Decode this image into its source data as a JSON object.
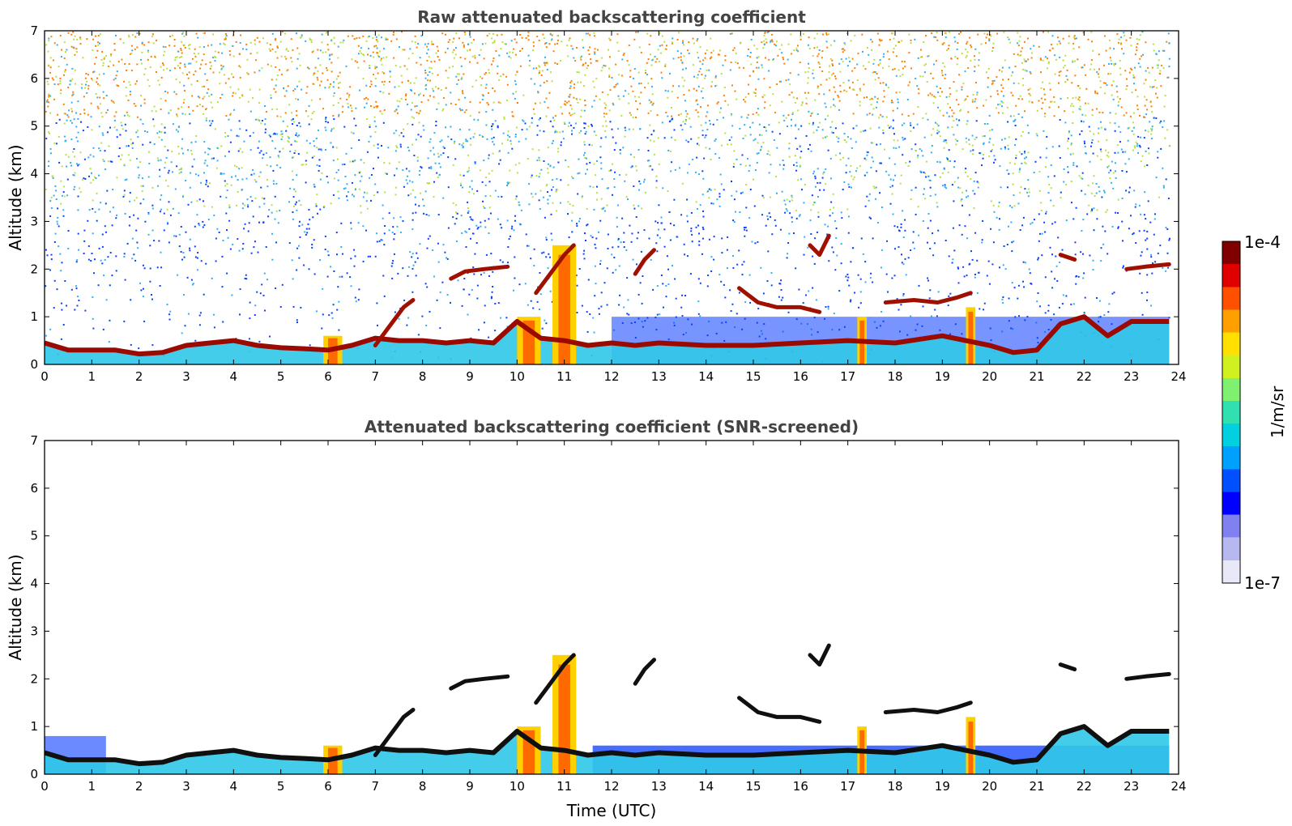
{
  "chart_data": [
    {
      "type": "heatmap",
      "title": "Raw attenuated backscattering coefficient",
      "xlabel": "",
      "ylabel": "Altitude (km)",
      "xlim": [
        0,
        24
      ],
      "ylim": [
        0,
        7
      ],
      "x_ticks": [
        "0",
        "1",
        "2",
        "3",
        "4",
        "5",
        "6",
        "7",
        "8",
        "9",
        "10",
        "11",
        "12",
        "13",
        "14",
        "15",
        "16",
        "17",
        "18",
        "19",
        "20",
        "21",
        "22",
        "23",
        "24"
      ],
      "y_ticks": [
        "0",
        "1",
        "2",
        "3",
        "4",
        "5",
        "6",
        "7"
      ],
      "boundary_layer": [
        [
          0,
          0.45
        ],
        [
          0.5,
          0.3
        ],
        [
          1,
          0.3
        ],
        [
          1.5,
          0.3
        ],
        [
          2,
          0.22
        ],
        [
          2.5,
          0.25
        ],
        [
          3,
          0.4
        ],
        [
          3.5,
          0.45
        ],
        [
          4,
          0.5
        ],
        [
          4.5,
          0.4
        ],
        [
          5,
          0.35
        ],
        [
          5.5,
          0.33
        ],
        [
          6,
          0.3
        ],
        [
          6.5,
          0.4
        ],
        [
          7,
          0.55
        ],
        [
          7.5,
          0.5
        ],
        [
          8,
          0.5
        ],
        [
          8.5,
          0.45
        ],
        [
          9,
          0.5
        ],
        [
          9.5,
          0.45
        ],
        [
          10,
          0.9
        ],
        [
          10.5,
          0.55
        ],
        [
          11,
          0.5
        ],
        [
          11.5,
          0.4
        ],
        [
          12,
          0.45
        ],
        [
          12.5,
          0.4
        ],
        [
          13,
          0.45
        ],
        [
          14,
          0.4
        ],
        [
          15,
          0.4
        ],
        [
          16,
          0.45
        ],
        [
          17,
          0.5
        ],
        [
          18,
          0.45
        ],
        [
          19,
          0.6
        ],
        [
          20,
          0.4
        ],
        [
          20.5,
          0.25
        ],
        [
          21,
          0.3
        ],
        [
          21.5,
          0.85
        ],
        [
          22,
          1.0
        ],
        [
          22.5,
          0.6
        ],
        [
          23,
          0.9
        ],
        [
          23.8,
          0.9
        ]
      ],
      "cloud_layers": [
        {
          "name": "cloud-layer-7-8",
          "points": [
            [
              7.0,
              0.4
            ],
            [
              7.3,
              0.8
            ],
            [
              7.6,
              1.2
            ],
            [
              7.8,
              1.35
            ]
          ]
        },
        {
          "name": "cloud-layer-8-9",
          "points": [
            [
              8.6,
              1.8
            ],
            [
              8.9,
              1.95
            ],
            [
              9.3,
              2.0
            ],
            [
              9.8,
              2.05
            ]
          ]
        },
        {
          "name": "cloud-layer-11",
          "points": [
            [
              10.4,
              1.5
            ],
            [
              10.7,
              1.9
            ],
            [
              11.0,
              2.3
            ],
            [
              11.2,
              2.5
            ]
          ]
        },
        {
          "name": "cloud-layer-12-13",
          "points": [
            [
              12.5,
              1.9
            ],
            [
              12.7,
              2.2
            ],
            [
              12.9,
              2.4
            ]
          ]
        },
        {
          "name": "cloud-layer-15-16",
          "points": [
            [
              14.7,
              1.6
            ],
            [
              15.1,
              1.3
            ],
            [
              15.5,
              1.2
            ],
            [
              16.0,
              1.2
            ],
            [
              16.4,
              1.1
            ]
          ]
        },
        {
          "name": "cloud-layer-16-17",
          "points": [
            [
              16.2,
              2.5
            ],
            [
              16.4,
              2.3
            ],
            [
              16.6,
              2.7
            ]
          ]
        },
        {
          "name": "cloud-layer-18-19",
          "points": [
            [
              17.8,
              1.3
            ],
            [
              18.4,
              1.35
            ],
            [
              18.9,
              1.3
            ],
            [
              19.3,
              1.4
            ],
            [
              19.6,
              1.5
            ]
          ]
        },
        {
          "name": "cloud-layer-21-22",
          "points": [
            [
              21.5,
              2.3
            ],
            [
              21.8,
              2.2
            ]
          ]
        },
        {
          "name": "cloud-layer-23-24",
          "points": [
            [
              22.9,
              2.0
            ],
            [
              23.3,
              2.05
            ],
            [
              23.8,
              2.1
            ]
          ]
        }
      ],
      "precip_columns": [
        {
          "name": "rain-column-6",
          "x_start": 5.9,
          "x_end": 6.3,
          "top": 0.6
        },
        {
          "name": "rain-column-10-11",
          "x_start": 10.0,
          "x_end": 10.5,
          "top": 1.0
        },
        {
          "name": "rain-column-11",
          "x_start": 10.75,
          "x_end": 11.25,
          "top": 2.5
        },
        {
          "name": "rain-column-17",
          "x_start": 17.2,
          "x_end": 17.4,
          "top": 1.0
        },
        {
          "name": "rain-column-19-20",
          "x_start": 19.5,
          "x_end": 19.7,
          "top": 1.2
        }
      ]
    },
    {
      "type": "heatmap",
      "title": "Attenuated backscattering coefficient (SNR-screened)",
      "xlabel": "Time (UTC)",
      "ylabel": "Altitude (km)",
      "xlim": [
        0,
        24
      ],
      "ylim": [
        0,
        7
      ],
      "x_ticks": [
        "0",
        "1",
        "2",
        "3",
        "4",
        "5",
        "6",
        "7",
        "8",
        "9",
        "10",
        "11",
        "12",
        "13",
        "14",
        "15",
        "16",
        "17",
        "18",
        "19",
        "20",
        "21",
        "22",
        "23",
        "24"
      ],
      "y_ticks": [
        "0",
        "1",
        "2",
        "3",
        "4",
        "5",
        "6",
        "7"
      ],
      "boundary_layer": [
        [
          0,
          0.45
        ],
        [
          0.5,
          0.3
        ],
        [
          1,
          0.3
        ],
        [
          1.5,
          0.3
        ],
        [
          2,
          0.22
        ],
        [
          2.5,
          0.25
        ],
        [
          3,
          0.4
        ],
        [
          3.5,
          0.45
        ],
        [
          4,
          0.5
        ],
        [
          4.5,
          0.4
        ],
        [
          5,
          0.35
        ],
        [
          5.5,
          0.33
        ],
        [
          6,
          0.3
        ],
        [
          6.5,
          0.4
        ],
        [
          7,
          0.55
        ],
        [
          7.5,
          0.5
        ],
        [
          8,
          0.5
        ],
        [
          8.5,
          0.45
        ],
        [
          9,
          0.5
        ],
        [
          9.5,
          0.45
        ],
        [
          10,
          0.9
        ],
        [
          10.5,
          0.55
        ],
        [
          11,
          0.5
        ],
        [
          11.5,
          0.4
        ],
        [
          12,
          0.45
        ],
        [
          12.5,
          0.4
        ],
        [
          13,
          0.45
        ],
        [
          14,
          0.4
        ],
        [
          15,
          0.4
        ],
        [
          16,
          0.45
        ],
        [
          17,
          0.5
        ],
        [
          18,
          0.45
        ],
        [
          19,
          0.6
        ],
        [
          20,
          0.4
        ],
        [
          20.5,
          0.25
        ],
        [
          21,
          0.3
        ],
        [
          21.5,
          0.85
        ],
        [
          22,
          1.0
        ],
        [
          22.5,
          0.6
        ],
        [
          23,
          0.9
        ],
        [
          23.8,
          0.9
        ]
      ],
      "cloud_layers": [
        {
          "name": "cloud-layer-7-8",
          "points": [
            [
              7.0,
              0.4
            ],
            [
              7.3,
              0.8
            ],
            [
              7.6,
              1.2
            ],
            [
              7.8,
              1.35
            ]
          ]
        },
        {
          "name": "cloud-layer-8-9",
          "points": [
            [
              8.6,
              1.8
            ],
            [
              8.9,
              1.95
            ],
            [
              9.3,
              2.0
            ],
            [
              9.8,
              2.05
            ]
          ]
        },
        {
          "name": "cloud-layer-11",
          "points": [
            [
              10.4,
              1.5
            ],
            [
              10.7,
              1.9
            ],
            [
              11.0,
              2.3
            ],
            [
              11.2,
              2.5
            ]
          ]
        },
        {
          "name": "cloud-layer-12-13",
          "points": [
            [
              12.5,
              1.9
            ],
            [
              12.7,
              2.2
            ],
            [
              12.9,
              2.4
            ]
          ]
        },
        {
          "name": "cloud-layer-15-16",
          "points": [
            [
              14.7,
              1.6
            ],
            [
              15.1,
              1.3
            ],
            [
              15.5,
              1.2
            ],
            [
              16.0,
              1.2
            ],
            [
              16.4,
              1.1
            ]
          ]
        },
        {
          "name": "cloud-layer-16-17",
          "points": [
            [
              16.2,
              2.5
            ],
            [
              16.4,
              2.3
            ],
            [
              16.6,
              2.7
            ]
          ]
        },
        {
          "name": "cloud-layer-18-19",
          "points": [
            [
              17.8,
              1.3
            ],
            [
              18.4,
              1.35
            ],
            [
              18.9,
              1.3
            ],
            [
              19.3,
              1.4
            ],
            [
              19.6,
              1.5
            ]
          ]
        },
        {
          "name": "cloud-layer-21-22",
          "points": [
            [
              21.5,
              2.3
            ],
            [
              21.8,
              2.2
            ]
          ]
        },
        {
          "name": "cloud-layer-23-24",
          "points": [
            [
              22.9,
              2.0
            ],
            [
              23.3,
              2.05
            ],
            [
              23.8,
              2.1
            ]
          ]
        }
      ],
      "precip_columns": [
        {
          "name": "rain-column-6",
          "x_start": 5.9,
          "x_end": 6.3,
          "top": 0.6
        },
        {
          "name": "rain-column-10-11",
          "x_start": 10.0,
          "x_end": 10.5,
          "top": 1.0
        },
        {
          "name": "rain-column-11",
          "x_start": 10.75,
          "x_end": 11.25,
          "top": 2.5
        },
        {
          "name": "rain-column-17",
          "x_start": 17.2,
          "x_end": 17.4,
          "top": 1.0
        },
        {
          "name": "rain-column-19-20",
          "x_start": 19.5,
          "x_end": 19.7,
          "top": 1.2
        }
      ]
    }
  ],
  "colorbar": {
    "max_label": "1e-4",
    "min_label": "1e-7",
    "unit_label": "1/m/sr",
    "colors": [
      "#e8e8f8",
      "#b8b8f0",
      "#8080f0",
      "#0000ff",
      "#0050ff",
      "#00a0ff",
      "#00d0e0",
      "#30e0b0",
      "#80f070",
      "#d0f020",
      "#ffe000",
      "#ffa000",
      "#ff5000",
      "#e00000",
      "#800000"
    ]
  },
  "colors": {
    "boundary_layer": "#9a0a00",
    "cloud": "#a01000",
    "precip_core": "#ff6a00",
    "precip_edge": "#ffd000",
    "aerosol_low": "#30c8e8",
    "aerosol_dark": "#0a3cff",
    "screened_core": "#101010",
    "noise_warm": "#ff8000",
    "noise_mid": "#b8e040",
    "noise_cool": "#30b0f0",
    "noise_deep": "#0a40ff"
  }
}
